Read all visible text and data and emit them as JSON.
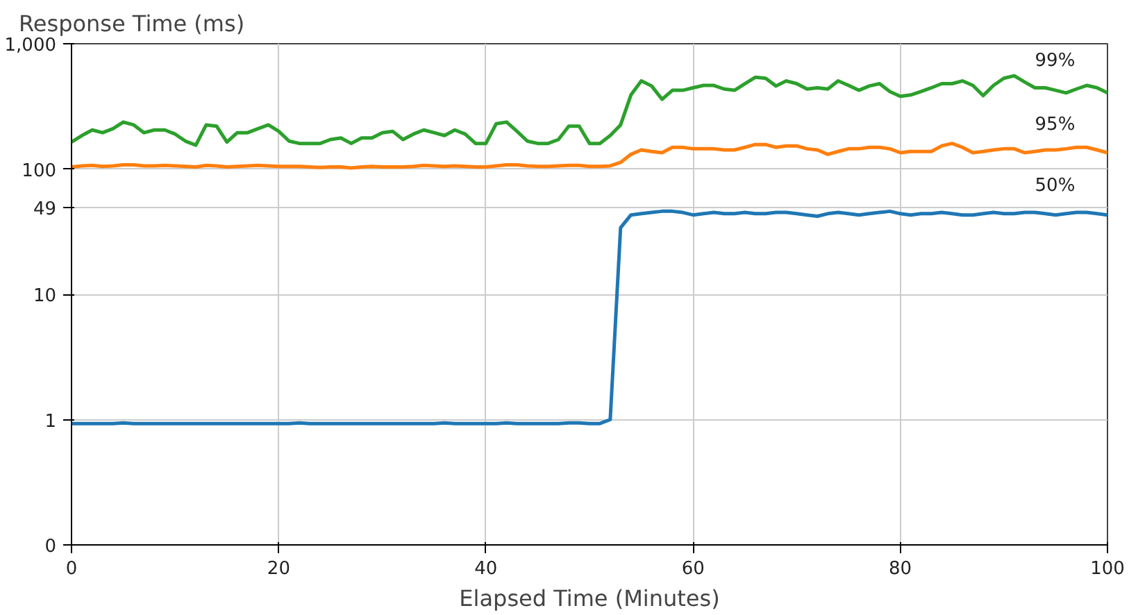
{
  "chart_data": {
    "type": "line",
    "xlabel": "Elapsed Time (Minutes)",
    "ylabel": "Response Time (ms)",
    "log": "y",
    "grid": true,
    "xlim": [
      0,
      100
    ],
    "xticks": [
      0,
      20,
      40,
      60,
      80,
      100
    ],
    "ylim": [
      0.1,
      1000
    ],
    "yticks": [
      {
        "value": 0.1,
        "label": "0"
      },
      1,
      10,
      49,
      100,
      {
        "value": 1000,
        "label": "1,000"
      }
    ],
    "x": [
      0,
      1,
      2,
      3,
      4,
      5,
      6,
      7,
      8,
      9,
      10,
      11,
      12,
      13,
      14,
      15,
      16,
      17,
      18,
      19,
      20,
      21,
      22,
      23,
      24,
      25,
      26,
      27,
      28,
      29,
      30,
      31,
      32,
      33,
      34,
      35,
      36,
      37,
      38,
      39,
      40,
      41,
      42,
      43,
      44,
      45,
      46,
      47,
      48,
      49,
      50,
      51,
      52,
      53,
      54,
      55,
      56,
      57,
      58,
      59,
      60,
      61,
      62,
      63,
      64,
      65,
      66,
      67,
      68,
      69,
      70,
      71,
      72,
      73,
      74,
      75,
      76,
      77,
      78,
      79,
      80,
      81,
      82,
      83,
      84,
      85,
      86,
      87,
      88,
      89,
      90,
      91,
      92,
      93,
      94,
      95,
      96,
      97,
      98,
      99,
      100
    ],
    "series": [
      {
        "name": "99%",
        "color": "#2ca02c",
        "values": [
          164,
          185,
          205,
          195,
          210,
          237,
          225,
          195,
          205,
          205,
          190,
          167,
          155,
          225,
          220,
          164,
          195,
          195,
          210,
          225,
          200,
          167,
          160,
          160,
          160,
          172,
          177,
          160,
          177,
          177,
          195,
          200,
          172,
          190,
          205,
          195,
          185,
          205,
          190,
          160,
          160,
          230,
          237,
          200,
          167,
          160,
          160,
          172,
          220,
          220,
          160,
          160,
          185,
          225,
          390,
          505,
          460,
          360,
          425,
          425,
          445,
          465,
          465,
          435,
          425,
          480,
          540,
          530,
          460,
          505,
          480,
          435,
          445,
          435,
          505,
          465,
          425,
          460,
          480,
          415,
          380,
          390,
          415,
          445,
          480,
          480,
          505,
          465,
          385,
          465,
          530,
          555,
          495,
          445,
          445,
          425,
          405,
          435,
          465,
          445,
          405
        ]
      },
      {
        "name": "95%",
        "color": "#ff7f0e",
        "values": [
          104,
          106,
          107,
          105,
          106,
          108,
          108,
          106,
          106,
          107,
          106,
          105,
          104,
          107,
          106,
          104,
          105,
          106,
          107,
          106,
          105,
          105,
          105,
          104,
          103,
          104,
          104,
          102,
          104,
          105,
          104,
          104,
          104,
          105,
          107,
          106,
          105,
          106,
          105,
          104,
          104,
          106,
          108,
          108,
          106,
          105,
          105,
          106,
          107,
          107,
          105,
          105,
          106,
          113,
          131,
          142,
          138,
          135,
          149,
          149,
          145,
          145,
          145,
          142,
          142,
          149,
          157,
          157,
          149,
          153,
          153,
          145,
          142,
          131,
          138,
          145,
          145,
          149,
          149,
          145,
          135,
          138,
          138,
          138,
          153,
          160,
          149,
          135,
          138,
          142,
          145,
          145,
          135,
          138,
          142,
          142,
          145,
          149,
          149,
          142,
          135
        ]
      },
      {
        "name": "50%",
        "color": "#1f77b4",
        "values": [
          0.93,
          0.93,
          0.93,
          0.93,
          0.93,
          0.94,
          0.93,
          0.93,
          0.93,
          0.93,
          0.93,
          0.93,
          0.93,
          0.93,
          0.93,
          0.93,
          0.93,
          0.93,
          0.93,
          0.93,
          0.93,
          0.93,
          0.94,
          0.93,
          0.93,
          0.93,
          0.93,
          0.93,
          0.93,
          0.93,
          0.93,
          0.93,
          0.93,
          0.93,
          0.93,
          0.93,
          0.94,
          0.93,
          0.93,
          0.93,
          0.93,
          0.93,
          0.94,
          0.93,
          0.93,
          0.93,
          0.93,
          0.93,
          0.94,
          0.94,
          0.93,
          0.93,
          1.0,
          34,
          43,
          44,
          45,
          46,
          46,
          45,
          43,
          44,
          45,
          44,
          44,
          45,
          44,
          44,
          45,
          45,
          44,
          43,
          42,
          44,
          45,
          44,
          43,
          44,
          45,
          46,
          44,
          43,
          44,
          44,
          45,
          44,
          43,
          43,
          44,
          45,
          44,
          44,
          45,
          45,
          44,
          43,
          44,
          45,
          45,
          44,
          43
        ]
      }
    ]
  }
}
